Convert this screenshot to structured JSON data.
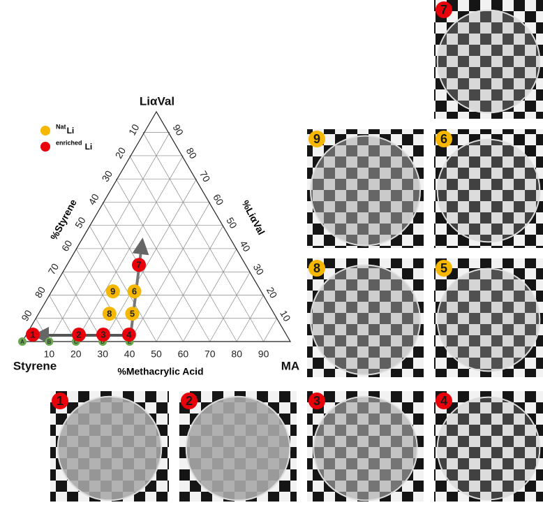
{
  "diagram": {
    "vertices": {
      "top": "LiαVal",
      "left": "Styrene",
      "right": "MA"
    },
    "axis_titles": {
      "bottom": "%Methacrylic Acid",
      "left": "%Styrene",
      "right": "%LiαVal"
    },
    "ticks": [
      10,
      20,
      30,
      40,
      50,
      60,
      70,
      80,
      90
    ],
    "legend": [
      {
        "sup": "Nat",
        "text": "Li",
        "color": "#f5b700"
      },
      {
        "sup": "enriched",
        "text": "Li",
        "color": "#e8000b"
      }
    ],
    "base_points": {
      "color": "#6aa84f",
      "points": [
        {
          "label": "A",
          "ma": 0
        },
        {
          "label": "B",
          "ma": 10
        },
        {
          "label": "C",
          "ma": 20
        },
        {
          "label": "D",
          "ma": 30
        },
        {
          "label": "E",
          "ma": 40
        }
      ]
    },
    "samples": [
      {
        "label": "1",
        "ma": 2.4,
        "lival": 3,
        "color": "#e8000b"
      },
      {
        "label": "2",
        "ma": 19.6,
        "lival": 3,
        "color": "#e8000b"
      },
      {
        "label": "3",
        "ma": 28.7,
        "lival": 3,
        "color": "#e8000b"
      },
      {
        "label": "4",
        "ma": 38.3,
        "lival": 3,
        "color": "#e8000b"
      },
      {
        "label": "5",
        "ma": 35,
        "lival": 12,
        "color": "#f5b700"
      },
      {
        "label": "6",
        "ma": 31,
        "lival": 21.6,
        "color": "#f5b700"
      },
      {
        "label": "7",
        "ma": 27,
        "lival": 33,
        "color": "#e8000b"
      },
      {
        "label": "8",
        "ma": 26.5,
        "lival": 12,
        "color": "#f5b700"
      },
      {
        "label": "9",
        "ma": 23,
        "lival": 21.6,
        "color": "#f5b700"
      }
    ]
  },
  "photos": [
    {
      "label": "7",
      "color": "#e8000b"
    },
    {
      "label": "9",
      "color": "#f5b700"
    },
    {
      "label": "6",
      "color": "#f5b700"
    },
    {
      "label": "8",
      "color": "#f5b700"
    },
    {
      "label": "5",
      "color": "#f5b700"
    },
    {
      "label": "1",
      "color": "#e8000b"
    },
    {
      "label": "2",
      "color": "#e8000b"
    },
    {
      "label": "3",
      "color": "#e8000b"
    },
    {
      "label": "4",
      "color": "#e8000b"
    }
  ]
}
